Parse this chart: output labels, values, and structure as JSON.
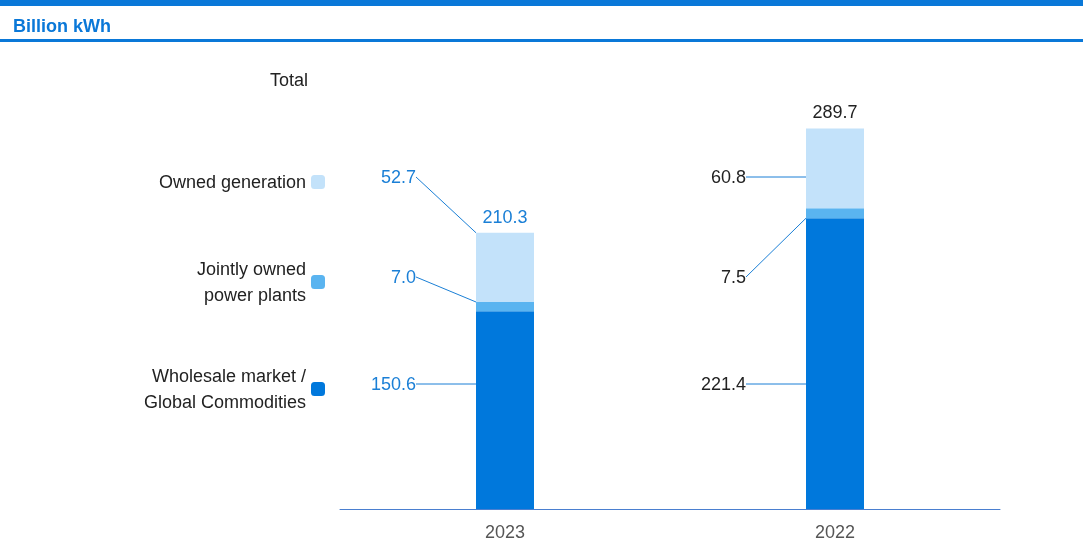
{
  "chart_data": {
    "type": "bar",
    "title": "Billion kWh",
    "stacked": true,
    "categories": [
      "2023",
      "2022"
    ],
    "series": [
      {
        "name": "Wholesale market / Global Commodities",
        "color": "#0078dc",
        "values": [
          150.6,
          221.4
        ],
        "value_labels": [
          "150.6",
          "221.4"
        ]
      },
      {
        "name": "Jointly owned power plants",
        "color": "#5ab4f0",
        "values": [
          7.0,
          7.5
        ],
        "value_labels": [
          "7.0",
          "7.5"
        ]
      },
      {
        "name": "Owned generation",
        "color": "#c3e2fa",
        "values": [
          52.7,
          60.8
        ],
        "value_labels": [
          "52.7",
          "60.8"
        ]
      }
    ],
    "totals": [
      "210.3",
      "289.7"
    ],
    "annotations": [
      "Total"
    ],
    "legend": "left"
  }
}
